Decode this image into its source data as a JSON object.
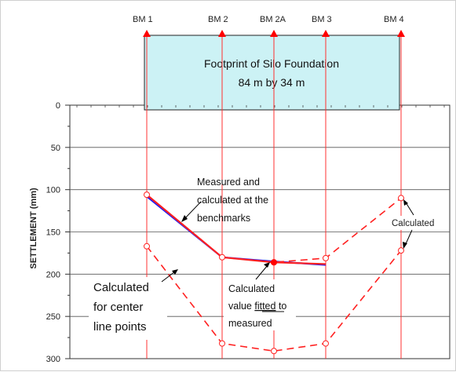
{
  "chart_data": {
    "type": "line",
    "title": "",
    "xlabel": "",
    "ylabel": "SETTLEMENT  (mm)",
    "ylim": [
      300,
      0
    ],
    "y_ticks": [
      "0",
      "50",
      "100",
      "150",
      "200",
      "250",
      "300"
    ],
    "grid": true,
    "benchmarks": [
      "BM 1",
      "BM 2",
      "BM 2A",
      "BM 3",
      "BM 4"
    ],
    "footprint": {
      "line1": "Footprint of Silo Foundation",
      "line2": "84 m  by  34 m"
    },
    "series": [
      {
        "role": "measured",
        "color": "#1a1aff",
        "style": "solid",
        "points": [
          [
            "BM 1",
            108
          ],
          [
            "BM 2",
            180
          ],
          [
            "BM 2A",
            185
          ],
          [
            "BM 3",
            189
          ]
        ]
      },
      {
        "role": "calculated-benchmark",
        "color": "#ff2020",
        "style": "solid",
        "points": [
          [
            "BM 1",
            106
          ],
          [
            "BM 2",
            180
          ],
          [
            "BM 2A",
            186
          ],
          [
            "BM 3",
            188
          ]
        ]
      },
      {
        "role": "calculated-upper",
        "color": "#ff2020",
        "style": "dashed",
        "points": [
          [
            "BM 1",
            106
          ],
          [
            "BM 2",
            180
          ],
          [
            "BM 2A",
            186
          ],
          [
            "BM 3",
            181
          ],
          [
            "BM 4",
            110
          ]
        ]
      },
      {
        "role": "calculated-centerline",
        "color": "#ff2020",
        "style": "dashed",
        "points": [
          [
            "BM 1",
            167
          ],
          [
            "BM 2",
            282
          ],
          [
            "BM 2A",
            291
          ],
          [
            "BM 3",
            282
          ],
          [
            "BM 4",
            172
          ]
        ]
      }
    ],
    "annotations": {
      "measured_calc": [
        "Measured and",
        "calculated at the",
        "benchmarks"
      ],
      "calculated_right": "Calculated",
      "calculated_center": [
        "Calculated",
        "for center",
        "line points"
      ],
      "fitted": [
        "Calculated",
        "value ",
        "fitted",
        " to",
        "measured"
      ]
    }
  }
}
